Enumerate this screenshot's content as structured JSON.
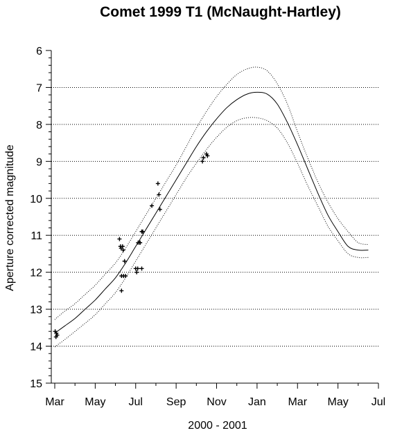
{
  "chart_data": {
    "type": "line",
    "title": "Comet 1999 T1 (McNaught-Hartley)",
    "xlabel": "2000 - 2001",
    "ylabel": "Aperture corrected magnitude",
    "x_unit": "month",
    "x_tick_labels": [
      "Mar",
      "May",
      "Jul",
      "Sep",
      "Nov",
      "Jan",
      "Mar",
      "May",
      "Jul"
    ],
    "x_ticks": [
      0,
      2,
      4,
      6,
      8,
      10,
      12,
      14,
      16
    ],
    "xlim": [
      0,
      16
    ],
    "y_ticks": [
      6,
      7,
      8,
      9,
      10,
      11,
      12,
      13,
      14,
      15
    ],
    "ylim": [
      6,
      15
    ],
    "y_inverted": true,
    "grid": "horizontal-dotted",
    "series": [
      {
        "style": "solid",
        "x": [
          0,
          0.5,
          1,
          1.5,
          2,
          2.5,
          3,
          3.5,
          4,
          4.5,
          5,
          5.5,
          6,
          6.5,
          7,
          7.5,
          8,
          8.5,
          9,
          9.5,
          10,
          10.5,
          11,
          11.5,
          12,
          12.5,
          13,
          13.5,
          14,
          14.5,
          15,
          15.5
        ],
        "y": [
          13.65,
          13.45,
          13.25,
          13.0,
          12.75,
          12.45,
          12.15,
          11.75,
          11.3,
          10.85,
          10.4,
          9.95,
          9.5,
          9.05,
          8.6,
          8.2,
          7.85,
          7.55,
          7.33,
          7.18,
          7.13,
          7.18,
          7.45,
          7.95,
          8.55,
          9.2,
          9.85,
          10.45,
          10.9,
          11.3,
          11.4,
          11.4
        ]
      },
      {
        "style": "dotted",
        "x": [
          0,
          0.5,
          1,
          1.5,
          2,
          2.5,
          3,
          3.5,
          4,
          4.5,
          5,
          5.5,
          6,
          6.5,
          7,
          7.5,
          8,
          8.5,
          9,
          9.5,
          10,
          10.5,
          11,
          11.5,
          12,
          12.5,
          13,
          13.5,
          14,
          14.5,
          15,
          15.5
        ],
        "y": [
          13.28,
          13.05,
          12.85,
          12.6,
          12.35,
          12.05,
          11.75,
          11.35,
          10.9,
          10.45,
          10.0,
          9.55,
          9.1,
          8.6,
          8.1,
          7.65,
          7.25,
          6.92,
          6.65,
          6.5,
          6.45,
          6.55,
          6.9,
          7.45,
          8.2,
          8.9,
          9.55,
          10.1,
          10.55,
          10.9,
          11.2,
          11.25
        ]
      },
      {
        "style": "dotted",
        "x": [
          0,
          0.5,
          1,
          1.5,
          2,
          2.5,
          3,
          3.5,
          4,
          4.5,
          5,
          5.5,
          6,
          6.5,
          7,
          7.5,
          8,
          8.5,
          9,
          9.5,
          10,
          10.5,
          11,
          11.5,
          12,
          12.5,
          13,
          13.5,
          14,
          14.5,
          15,
          15.5
        ],
        "y": [
          14.02,
          13.82,
          13.6,
          13.38,
          13.15,
          12.85,
          12.55,
          12.15,
          11.7,
          11.25,
          10.8,
          10.35,
          9.9,
          9.45,
          9.05,
          8.68,
          8.35,
          8.08,
          7.9,
          7.82,
          7.82,
          7.9,
          8.1,
          8.5,
          9.05,
          9.65,
          10.2,
          10.75,
          11.15,
          11.5,
          11.6,
          11.6
        ]
      }
    ],
    "observations": {
      "marker": "plus",
      "x": [
        0.02,
        0.08,
        0.12,
        0.06,
        3.2,
        3.25,
        3.35,
        3.28,
        3.38,
        3.45,
        3.3,
        3.4,
        3.5,
        3.3,
        4.0,
        4.05,
        4.1,
        4.12,
        4.2,
        4.22,
        4.3,
        4.3,
        4.35,
        4.8,
        5.1,
        5.15,
        5.2,
        7.3,
        7.35,
        7.5,
        7.55
      ],
      "y": [
        13.6,
        13.65,
        13.7,
        13.75,
        11.1,
        11.3,
        11.3,
        11.35,
        11.4,
        11.7,
        12.1,
        12.1,
        12.1,
        12.5,
        11.9,
        12.0,
        11.9,
        11.2,
        11.2,
        11.2,
        11.9,
        10.9,
        10.9,
        10.2,
        9.6,
        9.9,
        10.3,
        9.0,
        8.9,
        8.8,
        8.85
      ]
    }
  }
}
